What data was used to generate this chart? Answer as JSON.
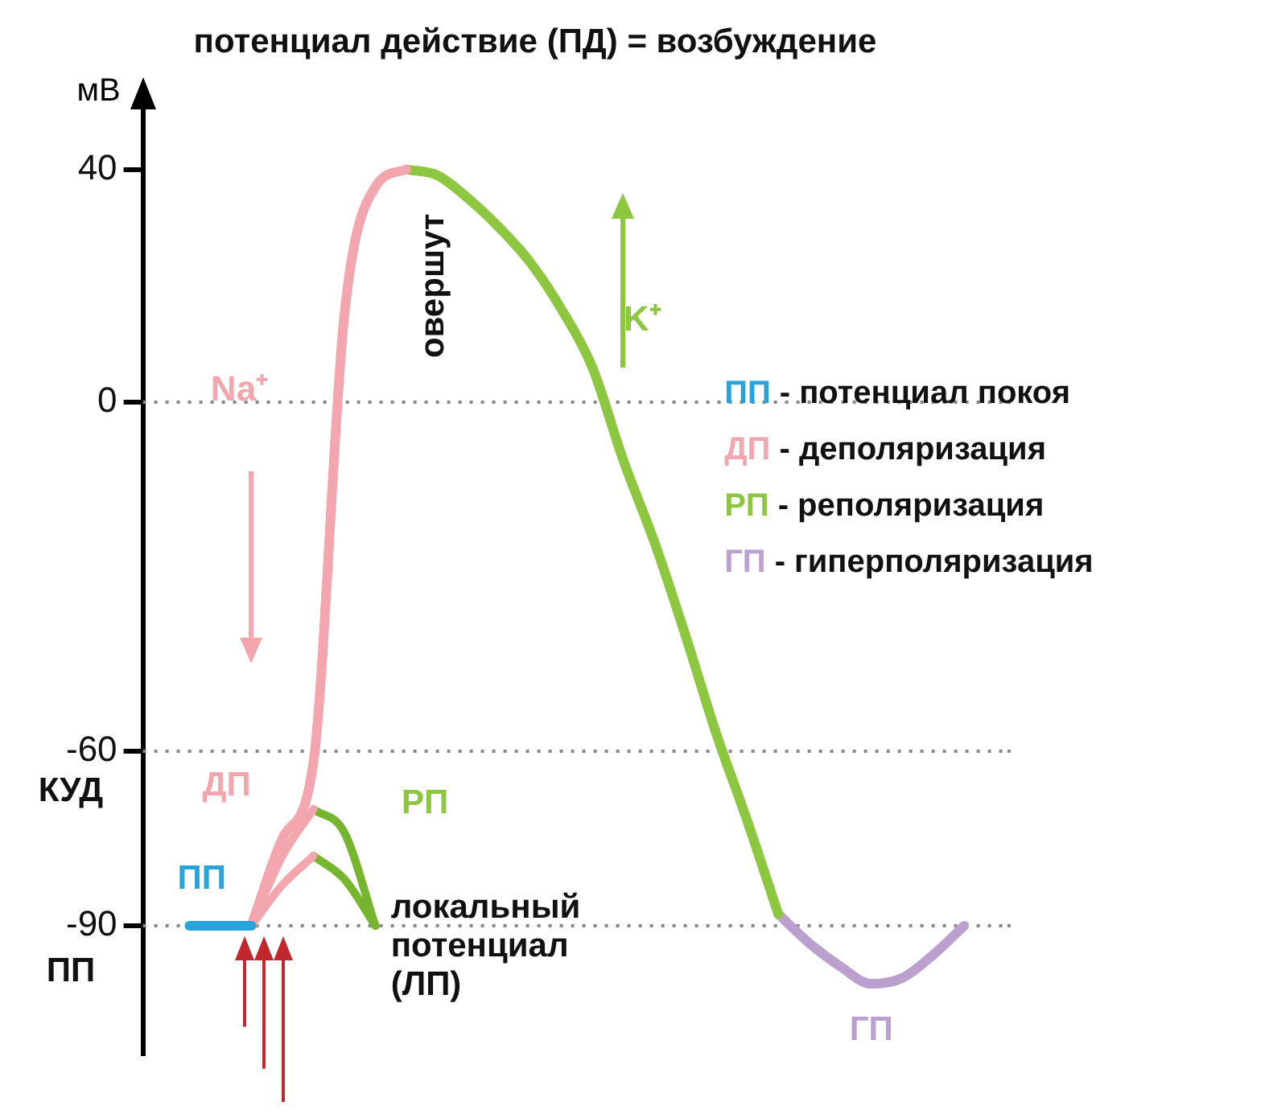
{
  "chart_data": {
    "type": "line",
    "title": "потенциал действие (ПД) = возбуждение",
    "ylabel": "мВ",
    "categories": [
      null,
      null,
      null,
      null,
      null,
      null,
      null,
      null,
      null,
      null,
      null,
      null,
      null,
      null,
      null,
      null,
      null,
      null,
      null,
      null,
      null,
      null,
      null,
      null,
      null,
      null,
      null,
      null
    ],
    "series": [
      {
        "color": "#f4a6ae",
        "values": [
          null,
          null,
          null,
          -90,
          -78,
          -70,
          null,
          null,
          null,
          null,
          null,
          null,
          null,
          null,
          null,
          null,
          null,
          null,
          null,
          null,
          null,
          null,
          null,
          null,
          null,
          null,
          null,
          null
        ]
      },
      {
        "color": "#76b52e",
        "values": [
          null,
          null,
          null,
          null,
          null,
          -70,
          -74,
          -90,
          null,
          null,
          null,
          null,
          null,
          null,
          null,
          null,
          null,
          null,
          null,
          null,
          null,
          null,
          null,
          null,
          null,
          null,
          null,
          null
        ]
      },
      {
        "color": "#f4a6ae",
        "values": [
          null,
          null,
          null,
          -90,
          -83,
          -78,
          null,
          null,
          null,
          null,
          null,
          null,
          null,
          null,
          null,
          null,
          null,
          null,
          null,
          null,
          null,
          null,
          null,
          null,
          null,
          null,
          null,
          null
        ]
      },
      {
        "color": "#76b52e",
        "values": [
          null,
          null,
          null,
          null,
          null,
          -78,
          -82,
          -90,
          null,
          null,
          null,
          null,
          null,
          null,
          null,
          null,
          null,
          null,
          null,
          null,
          null,
          null,
          null,
          null,
          null,
          null,
          null,
          null
        ]
      },
      {
        "name": "ПП - потенциал покоя",
        "color": "#29a3dc",
        "values": [
          null,
          -90,
          -90,
          -90,
          null,
          null,
          null,
          null,
          null,
          null,
          null,
          null,
          null,
          null,
          null,
          null,
          null,
          null,
          null,
          null,
          null,
          null,
          null,
          null,
          null,
          null,
          null,
          null
        ]
      },
      {
        "name": "ДП - деполяризация",
        "color": "#f4a6ae",
        "values": [
          null,
          null,
          null,
          -90,
          -75,
          -62,
          15,
          37,
          40,
          null,
          null,
          null,
          null,
          null,
          null,
          null,
          null,
          null,
          null,
          null,
          null,
          null,
          null,
          null,
          null,
          null,
          null,
          null
        ]
      },
      {
        "name": "РП - реполяризация",
        "color": "#8dc63f",
        "values": [
          null,
          null,
          null,
          null,
          null,
          null,
          null,
          null,
          40,
          39,
          35,
          30,
          24,
          16,
          6,
          -10,
          -24,
          -40,
          -57,
          -72,
          -88,
          null,
          null,
          null,
          null,
          null,
          null,
          null
        ]
      },
      {
        "name": "ГП - гиперполяризация",
        "color": "#bba0cf",
        "values": [
          null,
          null,
          null,
          null,
          null,
          null,
          null,
          null,
          null,
          null,
          null,
          null,
          null,
          null,
          null,
          null,
          null,
          null,
          null,
          null,
          -88,
          -93,
          -97,
          -100,
          -99,
          -95,
          -90,
          null
        ]
      }
    ],
    "ylim": [
      -112,
      50
    ],
    "yticks": [
      -90,
      -60,
      0,
      40
    ],
    "tick_labels": "y",
    "legend": "right",
    "ref_lines": [
      {
        "axis": "y",
        "value": 0,
        "color": "#888888",
        "line_style": "dotted"
      },
      {
        "axis": "y",
        "value": -60,
        "color": "#888888",
        "line_style": "dotted"
      },
      {
        "axis": "y",
        "value": -90,
        "color": "#888888",
        "line_style": "dotted"
      }
    ],
    "annotations": [
      "овершут",
      "K⁺",
      "Na⁺",
      "ДП",
      "РП",
      "ПП",
      "ГП",
      "локальный потенциал (ЛП)",
      "КУД",
      "ПП"
    ]
  }
}
